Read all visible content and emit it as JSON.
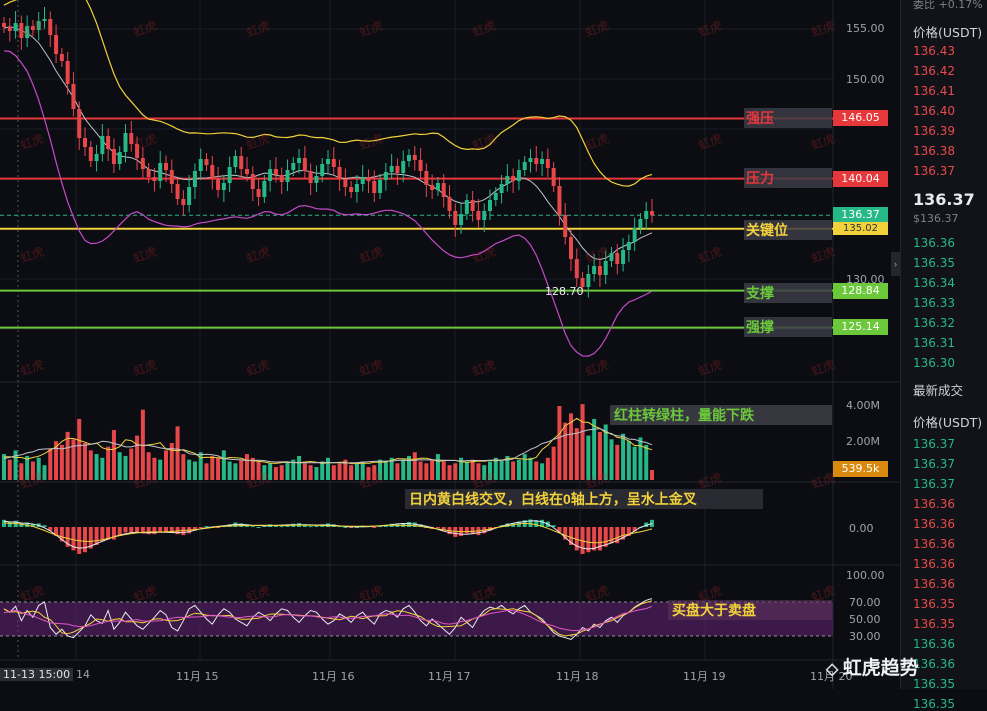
{
  "right_panel": {
    "header_top": "委比 +0.17%",
    "price_header": "价格(USDT)",
    "asks": [
      "136.43",
      "136.42",
      "136.41",
      "136.40",
      "136.39",
      "136.38",
      "136.37"
    ],
    "last_price": "136.37",
    "last_price_usd": "$136.37",
    "bids": [
      "136.36",
      "136.35",
      "136.34",
      "136.33",
      "136.32",
      "136.31",
      "136.30"
    ],
    "trades_title": "最新成交",
    "trades_header": "价格(USDT)",
    "trades": [
      {
        "p": "136.37",
        "c": "green"
      },
      {
        "p": "136.37",
        "c": "green"
      },
      {
        "p": "136.37",
        "c": "green"
      },
      {
        "p": "136.36",
        "c": "red"
      },
      {
        "p": "136.36",
        "c": "red"
      },
      {
        "p": "136.36",
        "c": "red"
      },
      {
        "p": "136.36",
        "c": "red"
      },
      {
        "p": "136.36",
        "c": "red"
      },
      {
        "p": "136.35",
        "c": "red"
      },
      {
        "p": "136.35",
        "c": "red"
      },
      {
        "p": "136.36",
        "c": "green"
      },
      {
        "p": "136.36",
        "c": "green"
      },
      {
        "p": "136.35",
        "c": "green"
      },
      {
        "p": "136.35",
        "c": "green"
      }
    ]
  },
  "levels": [
    {
      "name": "强压",
      "price": 146.05,
      "tag": "146.05",
      "color": "#e6373b",
      "label_color": "#e6373b"
    },
    {
      "name": "压力",
      "price": 140.04,
      "tag": "140.04",
      "color": "#e6373b",
      "label_color": "#e6373b"
    },
    {
      "name": "关键位",
      "price": 135.02,
      "tag": "135.02",
      "color": "#f2d23a",
      "label_color": "#f2d23a"
    },
    {
      "name": "支撑",
      "price": 128.84,
      "tag": "128.84",
      "color": "#6bc83a",
      "label_color": "#6bc83a"
    },
    {
      "name": "强撑",
      "price": 125.14,
      "tag": "125.14",
      "color": "#6bc83a",
      "label_color": "#6bc83a"
    }
  ],
  "current_price_tag": "136.37",
  "low_marker": "128.70",
  "price_axis": [
    "155.00",
    "150.00",
    "130.00"
  ],
  "volume_axis": [
    "4.00M",
    "2.00M"
  ],
  "volume_tag": "539.5k",
  "macd_axis": "0.00",
  "rsi_axis": [
    "100.00",
    "70.00",
    "50.00",
    "30.00"
  ],
  "x_axis": [
    "11-13 15:00",
    "14",
    "11月 15",
    "11月 16",
    "11月 17",
    "11月 18",
    "11月 19",
    "11月 20"
  ],
  "annotations": {
    "volume": "红柱转绿柱，量能下跌",
    "macd": "日内黄白线交叉，白线在0轴上方，呈水上金叉",
    "rsi": "买盘大于卖盘"
  },
  "watermark": "虹虎",
  "logo": "虹虎趋势",
  "colors": {
    "up": "#26b887",
    "down": "#e8474a",
    "bg": "#0b0d12"
  },
  "chart_data": {
    "type": "candlestick",
    "levels": [
      146.05,
      140.04,
      135.02,
      128.84,
      125.14
    ],
    "current": 136.37,
    "low_label": 128.7,
    "ylim": [
      120,
      158
    ],
    "closes": [
      155.2,
      154.8,
      155.6,
      154.1,
      155.3,
      154.9,
      155.8,
      156.0,
      154.4,
      152.5,
      151.8,
      149.5,
      147.0,
      144.1,
      143.2,
      141.8,
      142.5,
      144.3,
      143.0,
      141.5,
      142.7,
      144.6,
      143.5,
      142.1,
      141.0,
      140.2,
      139.8,
      141.6,
      140.9,
      139.5,
      138.0,
      137.4,
      139.2,
      140.8,
      142.0,
      141.4,
      140.0,
      138.9,
      139.6,
      141.2,
      142.3,
      141.0,
      140.5,
      139.0,
      138.2,
      139.8,
      141.0,
      140.4,
      139.7,
      140.9,
      141.6,
      142.1,
      140.8,
      139.6,
      140.3,
      141.5,
      142.0,
      141.2,
      140.0,
      139.2,
      138.7,
      139.5,
      140.2,
      139.8,
      138.6,
      139.9,
      140.7,
      141.3,
      140.6,
      141.8,
      142.4,
      141.9,
      140.8,
      139.4,
      138.9,
      139.6,
      138.2,
      136.8,
      135.4,
      136.5,
      137.9,
      136.8,
      135.9,
      136.8,
      137.9,
      138.6,
      139.5,
      140.3,
      139.8,
      140.9,
      141.7,
      142.1,
      141.5,
      142.0,
      141.1,
      139.3,
      136.4,
      134.2,
      132.0,
      130.1,
      129.2,
      130.5,
      131.3,
      130.4,
      131.8,
      132.6,
      131.5,
      132.9,
      133.7,
      135.1,
      136.0,
      136.8,
      136.37
    ],
    "volumes": [
      1.4,
      1.1,
      1.6,
      0.9,
      1.3,
      1.0,
      1.2,
      0.8,
      1.7,
      2.1,
      1.9,
      2.6,
      2.2,
      3.3,
      2.0,
      1.6,
      1.4,
      1.2,
      1.8,
      2.7,
      1.5,
      1.3,
      1.7,
      2.4,
      3.8,
      1.5,
      1.2,
      1.1,
      1.6,
      2.0,
      2.9,
      1.4,
      1.1,
      1.0,
      1.5,
      0.9,
      1.3,
      1.2,
      1.6,
      1.0,
      0.9,
      1.1,
      1.4,
      1.2,
      1.0,
      0.8,
      0.9,
      0.7,
      0.8,
      1.0,
      1.1,
      1.3,
      0.9,
      0.8,
      0.7,
      1.0,
      1.2,
      0.8,
      0.9,
      1.1,
      0.8,
      0.9,
      1.0,
      0.7,
      0.8,
      1.1,
      1.0,
      1.2,
      0.9,
      1.1,
      1.3,
      1.5,
      1.0,
      0.9,
      1.1,
      1.4,
      1.0,
      0.8,
      0.9,
      1.2,
      1.0,
      1.1,
      0.9,
      0.8,
      1.0,
      1.2,
      1.1,
      1.3,
      1.0,
      1.1,
      1.4,
      1.2,
      1.0,
      0.9,
      1.2,
      1.8,
      4.0,
      3.1,
      3.6,
      2.8,
      4.1,
      2.4,
      3.3,
      2.6,
      3.0,
      2.2,
      1.9,
      2.5,
      2.1,
      1.8,
      2.3,
      1.9,
      0.54
    ],
    "rsi": [
      62,
      58,
      65,
      48,
      60,
      52,
      66,
      70,
      40,
      32,
      38,
      30,
      28,
      35,
      42,
      55,
      48,
      45,
      60,
      38,
      46,
      58,
      50,
      42,
      38,
      45,
      52,
      60,
      55,
      40,
      36,
      48,
      62,
      66,
      58,
      50,
      44,
      55,
      62,
      58,
      50,
      46,
      42,
      52,
      58,
      54,
      48,
      56,
      62,
      60,
      52,
      46,
      54,
      60,
      58,
      50,
      44,
      48,
      56,
      52,
      46,
      54,
      58,
      50,
      44,
      56,
      60,
      58,
      52,
      62,
      66,
      58,
      48,
      42,
      50,
      44,
      38,
      32,
      40,
      52,
      46,
      40,
      52,
      60,
      64,
      62,
      66,
      60,
      56,
      62,
      66,
      58,
      54,
      50,
      42,
      34,
      30,
      28,
      26,
      32,
      40,
      36,
      44,
      40,
      48,
      52,
      46,
      54,
      58,
      64,
      68,
      72,
      74
    ],
    "macd": [
      0.4,
      0.3,
      0.35,
      0.2,
      0.25,
      0.15,
      0.2,
      0.1,
      -0.2,
      -0.5,
      -0.8,
      -1.1,
      -1.3,
      -1.5,
      -1.4,
      -1.2,
      -1.0,
      -0.8,
      -0.7,
      -0.7,
      -0.5,
      -0.3,
      -0.3,
      -0.3,
      -0.35,
      -0.4,
      -0.4,
      -0.3,
      -0.25,
      -0.3,
      -0.4,
      -0.45,
      -0.35,
      -0.2,
      -0.05,
      0.05,
      0.0,
      -0.05,
      0.05,
      0.15,
      0.25,
      0.2,
      0.15,
      0.05,
      0.0,
      0.1,
      0.15,
      0.1,
      0.05,
      0.1,
      0.18,
      0.22,
      0.15,
      0.05,
      0.08,
      0.15,
      0.2,
      0.15,
      0.05,
      0.0,
      -0.05,
      0.0,
      0.08,
      0.05,
      -0.05,
      0.05,
      0.12,
      0.18,
      0.15,
      0.22,
      0.28,
      0.25,
      0.15,
      0.0,
      -0.1,
      -0.05,
      -0.2,
      -0.4,
      -0.55,
      -0.5,
      -0.35,
      -0.4,
      -0.45,
      -0.35,
      -0.2,
      -0.05,
      0.1,
      0.2,
      0.2,
      0.3,
      0.38,
      0.42,
      0.38,
      0.4,
      0.3,
      0.1,
      -0.3,
      -0.7,
      -1.0,
      -1.3,
      -1.5,
      -1.4,
      -1.3,
      -1.3,
      -1.1,
      -0.9,
      -0.9,
      -0.7,
      -0.5,
      -0.25,
      0.0,
      0.25,
      0.4
    ]
  }
}
